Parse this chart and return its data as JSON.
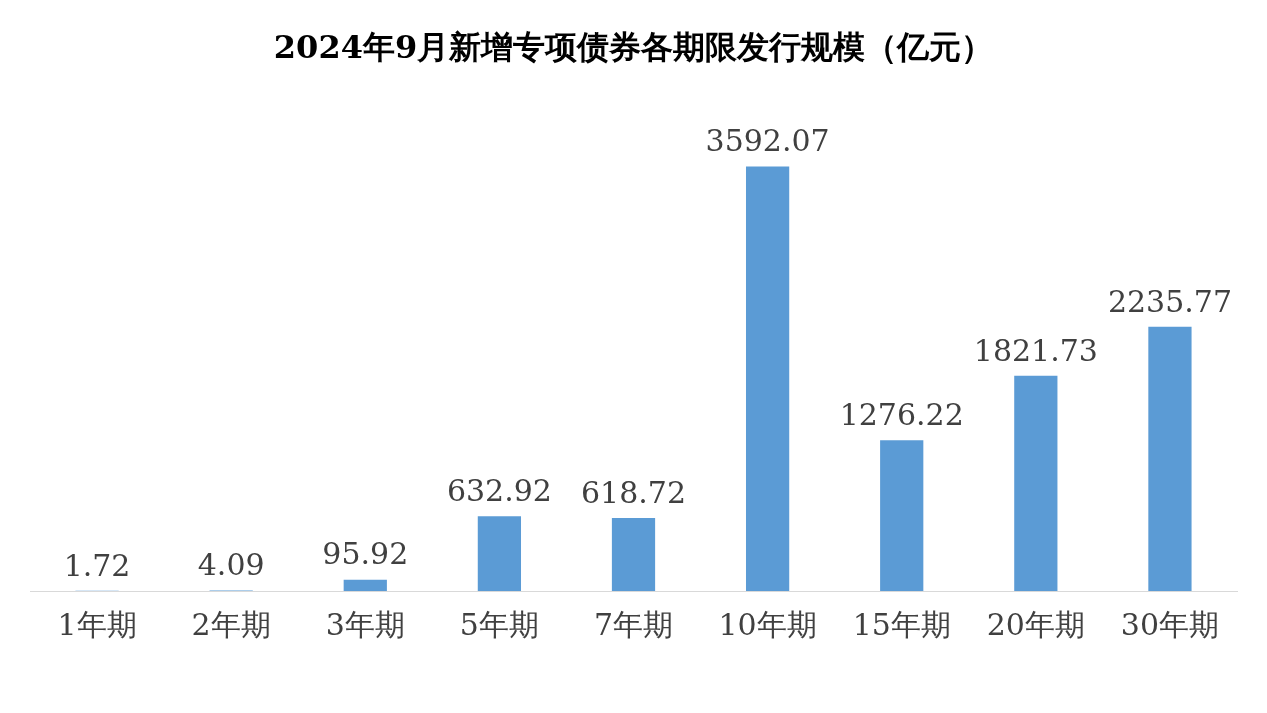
{
  "chart_data": {
    "type": "bar",
    "title": "2024年9月新增专项债券各期限发行规模（亿元）",
    "categories": [
      "1年期",
      "2年期",
      "3年期",
      "5年期",
      "7年期",
      "10年期",
      "15年期",
      "20年期",
      "30年期"
    ],
    "values": [
      1.72,
      4.09,
      95.92,
      632.92,
      618.72,
      3592.07,
      1276.22,
      1821.73,
      2235.77
    ],
    "color": "#5b9bd5",
    "tick_labels": "x",
    "data_labels": true,
    "grid": false,
    "legend": false
  }
}
